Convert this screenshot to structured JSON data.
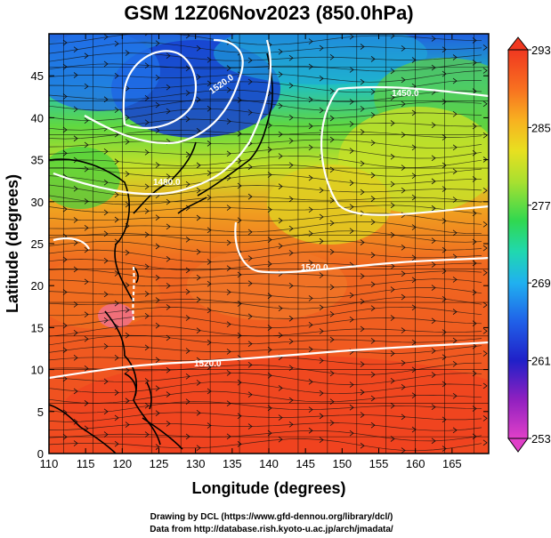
{
  "title": "GSM 12Z06Nov2023 (850.0hPa)",
  "x_axis": {
    "label": "Longitude (degrees)",
    "min": 110,
    "max": 170,
    "ticks": [
      "110",
      "115",
      "120",
      "125",
      "130",
      "135",
      "140",
      "145",
      "150",
      "155",
      "160",
      "165"
    ]
  },
  "y_axis": {
    "label": "Latitude  (degrees)",
    "min": 0,
    "max": 50,
    "ticks": [
      "0",
      "5",
      "10",
      "15",
      "20",
      "25",
      "30",
      "35",
      "40",
      "45"
    ]
  },
  "colorbar": {
    "min": 253,
    "max": 293,
    "ticks": [
      "253",
      "261",
      "269",
      "277",
      "285",
      "293"
    ],
    "colors": [
      "#e040c8",
      "#8020c0",
      "#2030d0",
      "#2080f0",
      "#20c8e8",
      "#20d890",
      "#40e040",
      "#a8e030",
      "#e8e020",
      "#f8b020",
      "#f87020",
      "#f04020"
    ]
  },
  "contours": [
    {
      "label": "1480.0"
    },
    {
      "label": "1450.0"
    },
    {
      "label": "1520.0"
    },
    {
      "label": "1520.0"
    },
    {
      "label": "1520.0"
    }
  ],
  "credits": {
    "line1": "Drawing by DCL (https://www.gfd-dennou.org/library/dcl/)",
    "line2": "Data from http://database.rish.kyoto-u.ac.jp/arch/jmadata/"
  }
}
